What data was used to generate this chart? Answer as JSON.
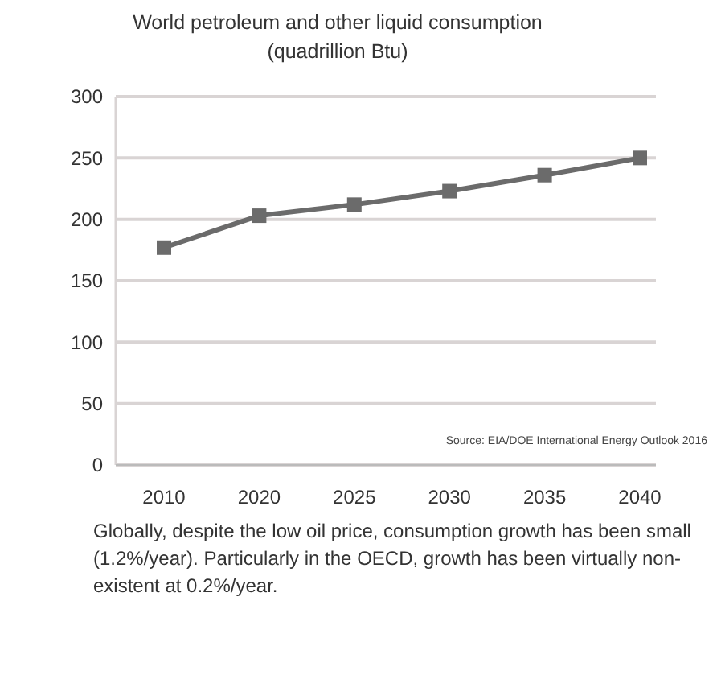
{
  "chart_data": {
    "type": "line",
    "title": "World petroleum and other liquid consumption (quadrillion Btu)",
    "categories": [
      "2010",
      "2020",
      "2025",
      "2030",
      "2035",
      "2040"
    ],
    "series": [
      {
        "color": "#6b6b6b",
        "values": [
          177,
          203,
          212,
          223,
          236,
          250
        ]
      }
    ],
    "ylim": [
      0,
      300
    ],
    "yticks": [
      0,
      50,
      100,
      150,
      200,
      250,
      300
    ],
    "grid": "y",
    "marker": "square",
    "line_style": "solid",
    "annotations": [
      "Source: EIA/DOE International Energy Outlook 2016",
      "Globally, despite the low oil price, consumption growth has been small (1.2%/year). Particularly in the OECD, growth has been virtually non-existent at 0.2%/year."
    ]
  }
}
